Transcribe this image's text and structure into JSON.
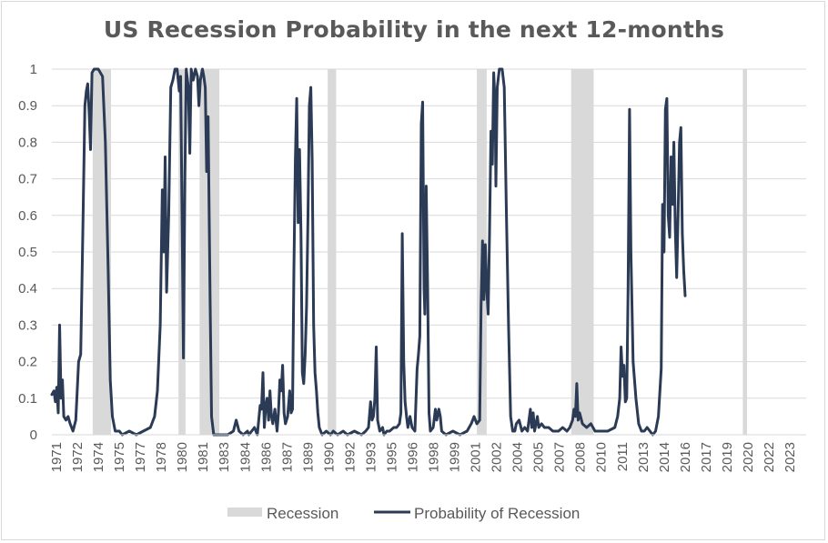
{
  "chart_data": {
    "type": "line",
    "title": "US Recession Probability in the next 12-months",
    "ylim": [
      0,
      1
    ],
    "xlim": [
      1971.0,
      2024.6
    ],
    "yticks": [
      "0",
      "0.1",
      "0.2",
      "0.3",
      "0.4",
      "0.5",
      "0.6",
      "0.7",
      "0.8",
      "0.9",
      "1"
    ],
    "xticks": [
      "1971",
      "1972",
      "1974",
      "1975",
      "1977",
      "1978",
      "1980",
      "1981",
      "1983",
      "1984",
      "1986",
      "1987",
      "1989",
      "1990",
      "1992",
      "1993",
      "1995",
      "1996",
      "1998",
      "1999",
      "2001",
      "2002",
      "2004",
      "2005",
      "2007",
      "2008",
      "2010",
      "2011",
      "2013",
      "2014",
      "2016",
      "2017",
      "2019",
      "2020",
      "2022",
      "2023"
    ],
    "grid": true,
    "legend_position": "bottom",
    "colors": {
      "recession": "#d9d9d9",
      "probability": "#2b3a55",
      "grid": "#d9d9d9",
      "text": "#595959"
    },
    "series": [
      {
        "name": "Recession",
        "type": "shaded",
        "periods": [
          [
            1973.9,
            1975.2
          ],
          [
            1980.0,
            1980.5
          ],
          [
            1981.5,
            1982.9
          ],
          [
            1990.6,
            1991.2
          ],
          [
            2001.2,
            2001.9
          ],
          [
            2007.9,
            2009.5
          ],
          [
            2020.1,
            2020.4
          ]
        ]
      },
      {
        "name": "Probability of Recession",
        "type": "line",
        "points": [
          [
            1971.0,
            0.11
          ],
          [
            1971.15,
            0.12
          ],
          [
            1971.25,
            0.09
          ],
          [
            1971.35,
            0.13
          ],
          [
            1971.45,
            0.06
          ],
          [
            1971.55,
            0.3
          ],
          [
            1971.65,
            0.1
          ],
          [
            1971.75,
            0.15
          ],
          [
            1971.85,
            0.05
          ],
          [
            1972.0,
            0.04
          ],
          [
            1972.15,
            0.05
          ],
          [
            1972.3,
            0.03
          ],
          [
            1972.5,
            0.01
          ],
          [
            1972.7,
            0.04
          ],
          [
            1972.9,
            0.2
          ],
          [
            1973.05,
            0.22
          ],
          [
            1973.2,
            0.55
          ],
          [
            1973.35,
            0.9
          ],
          [
            1973.45,
            0.94
          ],
          [
            1973.55,
            0.96
          ],
          [
            1973.65,
            0.88
          ],
          [
            1973.75,
            0.78
          ],
          [
            1973.85,
            0.99
          ],
          [
            1974.0,
            1.0
          ],
          [
            1974.3,
            1.0
          ],
          [
            1974.6,
            0.98
          ],
          [
            1974.8,
            0.8
          ],
          [
            1975.0,
            0.45
          ],
          [
            1975.15,
            0.15
          ],
          [
            1975.3,
            0.05
          ],
          [
            1975.5,
            0.01
          ],
          [
            1975.8,
            0.01
          ],
          [
            1976.0,
            0.0
          ],
          [
            1976.5,
            0.01
          ],
          [
            1977.0,
            0.0
          ],
          [
            1977.5,
            0.01
          ],
          [
            1978.0,
            0.02
          ],
          [
            1978.3,
            0.05
          ],
          [
            1978.5,
            0.12
          ],
          [
            1978.7,
            0.3
          ],
          [
            1978.85,
            0.67
          ],
          [
            1978.95,
            0.5
          ],
          [
            1979.05,
            0.76
          ],
          [
            1979.15,
            0.39
          ],
          [
            1979.3,
            0.6
          ],
          [
            1979.45,
            0.95
          ],
          [
            1979.6,
            0.97
          ],
          [
            1979.75,
            1.0
          ],
          [
            1979.9,
            1.0
          ],
          [
            1980.05,
            0.94
          ],
          [
            1980.15,
            0.98
          ],
          [
            1980.25,
            0.6
          ],
          [
            1980.35,
            0.21
          ],
          [
            1980.45,
            0.7
          ],
          [
            1980.55,
            1.0
          ],
          [
            1980.7,
            0.95
          ],
          [
            1980.8,
            0.77
          ],
          [
            1980.9,
            1.0
          ],
          [
            1981.05,
            0.97
          ],
          [
            1981.2,
            1.0
          ],
          [
            1981.35,
            0.98
          ],
          [
            1981.45,
            0.9
          ],
          [
            1981.55,
            0.97
          ],
          [
            1981.7,
            1.0
          ],
          [
            1981.8,
            0.98
          ],
          [
            1981.9,
            0.95
          ],
          [
            1982.0,
            0.72
          ],
          [
            1982.1,
            0.87
          ],
          [
            1982.25,
            0.35
          ],
          [
            1982.35,
            0.05
          ],
          [
            1982.5,
            0.0
          ],
          [
            1983.0,
            0.0
          ],
          [
            1983.5,
            0.0
          ],
          [
            1983.9,
            0.01
          ],
          [
            1984.1,
            0.04
          ],
          [
            1984.3,
            0.01
          ],
          [
            1984.6,
            0.0
          ],
          [
            1984.9,
            0.01
          ],
          [
            1985.0,
            0.0
          ],
          [
            1985.2,
            0.01
          ],
          [
            1985.4,
            0.02
          ],
          [
            1985.6,
            0.0
          ],
          [
            1985.8,
            0.08
          ],
          [
            1985.9,
            0.07
          ],
          [
            1986.0,
            0.17
          ],
          [
            1986.1,
            0.02
          ],
          [
            1986.2,
            0.08
          ],
          [
            1986.3,
            0.1
          ],
          [
            1986.4,
            0.04
          ],
          [
            1986.5,
            0.12
          ],
          [
            1986.6,
            0.05
          ],
          [
            1986.7,
            0.03
          ],
          [
            1986.85,
            0.07
          ],
          [
            1987.0,
            0.01
          ],
          [
            1987.1,
            0.06
          ],
          [
            1987.2,
            0.15
          ],
          [
            1987.3,
            0.12
          ],
          [
            1987.4,
            0.19
          ],
          [
            1987.5,
            0.06
          ],
          [
            1987.6,
            0.03
          ],
          [
            1987.75,
            0.05
          ],
          [
            1987.9,
            0.12
          ],
          [
            1988.0,
            0.06
          ],
          [
            1988.1,
            0.07
          ],
          [
            1988.2,
            0.45
          ],
          [
            1988.3,
            0.75
          ],
          [
            1988.4,
            0.92
          ],
          [
            1988.5,
            0.58
          ],
          [
            1988.6,
            0.78
          ],
          [
            1988.7,
            0.55
          ],
          [
            1988.8,
            0.17
          ],
          [
            1988.9,
            0.14
          ],
          [
            1989.0,
            0.22
          ],
          [
            1989.1,
            0.35
          ],
          [
            1989.2,
            0.6
          ],
          [
            1989.3,
            0.9
          ],
          [
            1989.4,
            0.95
          ],
          [
            1989.5,
            0.75
          ],
          [
            1989.6,
            0.3
          ],
          [
            1989.7,
            0.17
          ],
          [
            1989.8,
            0.12
          ],
          [
            1989.9,
            0.06
          ],
          [
            1990.0,
            0.02
          ],
          [
            1990.2,
            0.0
          ],
          [
            1990.5,
            0.01
          ],
          [
            1990.8,
            0.0
          ],
          [
            1991.0,
            0.01
          ],
          [
            1991.3,
            0.0
          ],
          [
            1991.7,
            0.01
          ],
          [
            1992.0,
            0.0
          ],
          [
            1992.5,
            0.01
          ],
          [
            1993.0,
            0.0
          ],
          [
            1993.3,
            0.01
          ],
          [
            1993.5,
            0.02
          ],
          [
            1993.65,
            0.09
          ],
          [
            1993.75,
            0.04
          ],
          [
            1993.85,
            0.05
          ],
          [
            1993.95,
            0.1
          ],
          [
            1994.05,
            0.24
          ],
          [
            1994.15,
            0.04
          ],
          [
            1994.3,
            0.01
          ],
          [
            1994.5,
            0.02
          ],
          [
            1994.6,
            0.0
          ],
          [
            1994.8,
            0.01
          ],
          [
            1995.0,
            0.01
          ],
          [
            1995.3,
            0.02
          ],
          [
            1995.5,
            0.02
          ],
          [
            1995.7,
            0.03
          ],
          [
            1995.8,
            0.06
          ],
          [
            1995.9,
            0.55
          ],
          [
            1996.0,
            0.2
          ],
          [
            1996.1,
            0.09
          ],
          [
            1996.2,
            0.05
          ],
          [
            1996.3,
            0.02
          ],
          [
            1996.45,
            0.05
          ],
          [
            1996.6,
            0.02
          ],
          [
            1996.8,
            0.01
          ],
          [
            1996.95,
            0.18
          ],
          [
            1997.05,
            0.22
          ],
          [
            1997.15,
            0.27
          ],
          [
            1997.25,
            0.85
          ],
          [
            1997.35,
            0.91
          ],
          [
            1997.45,
            0.4
          ],
          [
            1997.5,
            0.33
          ],
          [
            1997.6,
            0.68
          ],
          [
            1997.7,
            0.4
          ],
          [
            1997.8,
            0.06
          ],
          [
            1997.9,
            0.01
          ],
          [
            1998.1,
            0.02
          ],
          [
            1998.25,
            0.07
          ],
          [
            1998.35,
            0.04
          ],
          [
            1998.5,
            0.07
          ],
          [
            1998.6,
            0.05
          ],
          [
            1998.7,
            0.01
          ],
          [
            1999.0,
            0.0
          ],
          [
            1999.5,
            0.01
          ],
          [
            2000.0,
            0.0
          ],
          [
            2000.5,
            0.01
          ],
          [
            2000.8,
            0.03
          ],
          [
            2001.0,
            0.05
          ],
          [
            2001.2,
            0.03
          ],
          [
            2001.4,
            0.04
          ],
          [
            2001.5,
            0.35
          ],
          [
            2001.6,
            0.53
          ],
          [
            2001.7,
            0.37
          ],
          [
            2001.8,
            0.52
          ],
          [
            2001.9,
            0.4
          ],
          [
            2002.0,
            0.33
          ],
          [
            2002.1,
            0.55
          ],
          [
            2002.2,
            0.83
          ],
          [
            2002.3,
            0.74
          ],
          [
            2002.4,
            0.99
          ],
          [
            2002.5,
            0.9
          ],
          [
            2002.55,
            0.68
          ],
          [
            2002.65,
            0.95
          ],
          [
            2002.8,
            1.0
          ],
          [
            2003.0,
            1.0
          ],
          [
            2003.15,
            0.95
          ],
          [
            2003.3,
            0.6
          ],
          [
            2003.45,
            0.3
          ],
          [
            2003.6,
            0.05
          ],
          [
            2003.75,
            0.01
          ],
          [
            2003.9,
            0.01
          ],
          [
            2004.0,
            0.03
          ],
          [
            2004.2,
            0.04
          ],
          [
            2004.4,
            0.01
          ],
          [
            2004.6,
            0.02
          ],
          [
            2004.8,
            0.01
          ],
          [
            2005.0,
            0.07
          ],
          [
            2005.1,
            0.02
          ],
          [
            2005.2,
            0.06
          ],
          [
            2005.3,
            0.01
          ],
          [
            2005.5,
            0.05
          ],
          [
            2005.6,
            0.02
          ],
          [
            2005.8,
            0.03
          ],
          [
            2006.0,
            0.02
          ],
          [
            2006.3,
            0.02
          ],
          [
            2006.6,
            0.01
          ],
          [
            2007.0,
            0.01
          ],
          [
            2007.3,
            0.02
          ],
          [
            2007.6,
            0.01
          ],
          [
            2007.8,
            0.02
          ],
          [
            2008.0,
            0.04
          ],
          [
            2008.1,
            0.07
          ],
          [
            2008.2,
            0.05
          ],
          [
            2008.3,
            0.14
          ],
          [
            2008.4,
            0.04
          ],
          [
            2008.5,
            0.06
          ],
          [
            2008.7,
            0.03
          ],
          [
            2009.0,
            0.02
          ],
          [
            2009.3,
            0.03
          ],
          [
            2009.6,
            0.01
          ],
          [
            2010.0,
            0.01
          ],
          [
            2010.5,
            0.01
          ],
          [
            2011.0,
            0.02
          ],
          [
            2011.2,
            0.05
          ],
          [
            2011.35,
            0.1
          ],
          [
            2011.45,
            0.24
          ],
          [
            2011.55,
            0.16
          ],
          [
            2011.65,
            0.19
          ],
          [
            2011.75,
            0.09
          ],
          [
            2011.85,
            0.1
          ],
          [
            2011.95,
            0.4
          ],
          [
            2012.05,
            0.89
          ],
          [
            2012.15,
            0.5
          ],
          [
            2012.3,
            0.2
          ],
          [
            2012.5,
            0.1
          ],
          [
            2012.7,
            0.03
          ],
          [
            2012.9,
            0.01
          ],
          [
            2013.1,
            0.01
          ],
          [
            2013.3,
            0.02
          ],
          [
            2013.5,
            0.01
          ],
          [
            2013.7,
            0.0
          ],
          [
            2013.9,
            0.01
          ],
          [
            2014.1,
            0.05
          ],
          [
            2014.3,
            0.18
          ],
          [
            2014.4,
            0.63
          ],
          [
            2014.5,
            0.5
          ],
          [
            2014.6,
            0.89
          ],
          [
            2014.7,
            0.92
          ],
          [
            2014.8,
            0.6
          ],
          [
            2014.9,
            0.54
          ],
          [
            2015.0,
            0.76
          ],
          [
            2015.1,
            0.63
          ],
          [
            2015.2,
            0.8
          ],
          [
            2015.3,
            0.56
          ],
          [
            2015.4,
            0.43
          ],
          [
            2015.5,
            0.61
          ],
          [
            2015.6,
            0.8
          ],
          [
            2015.7,
            0.84
          ],
          [
            2015.8,
            0.55
          ],
          [
            2015.9,
            0.45
          ],
          [
            2016.0,
            0.38
          ]
        ]
      }
    ]
  }
}
